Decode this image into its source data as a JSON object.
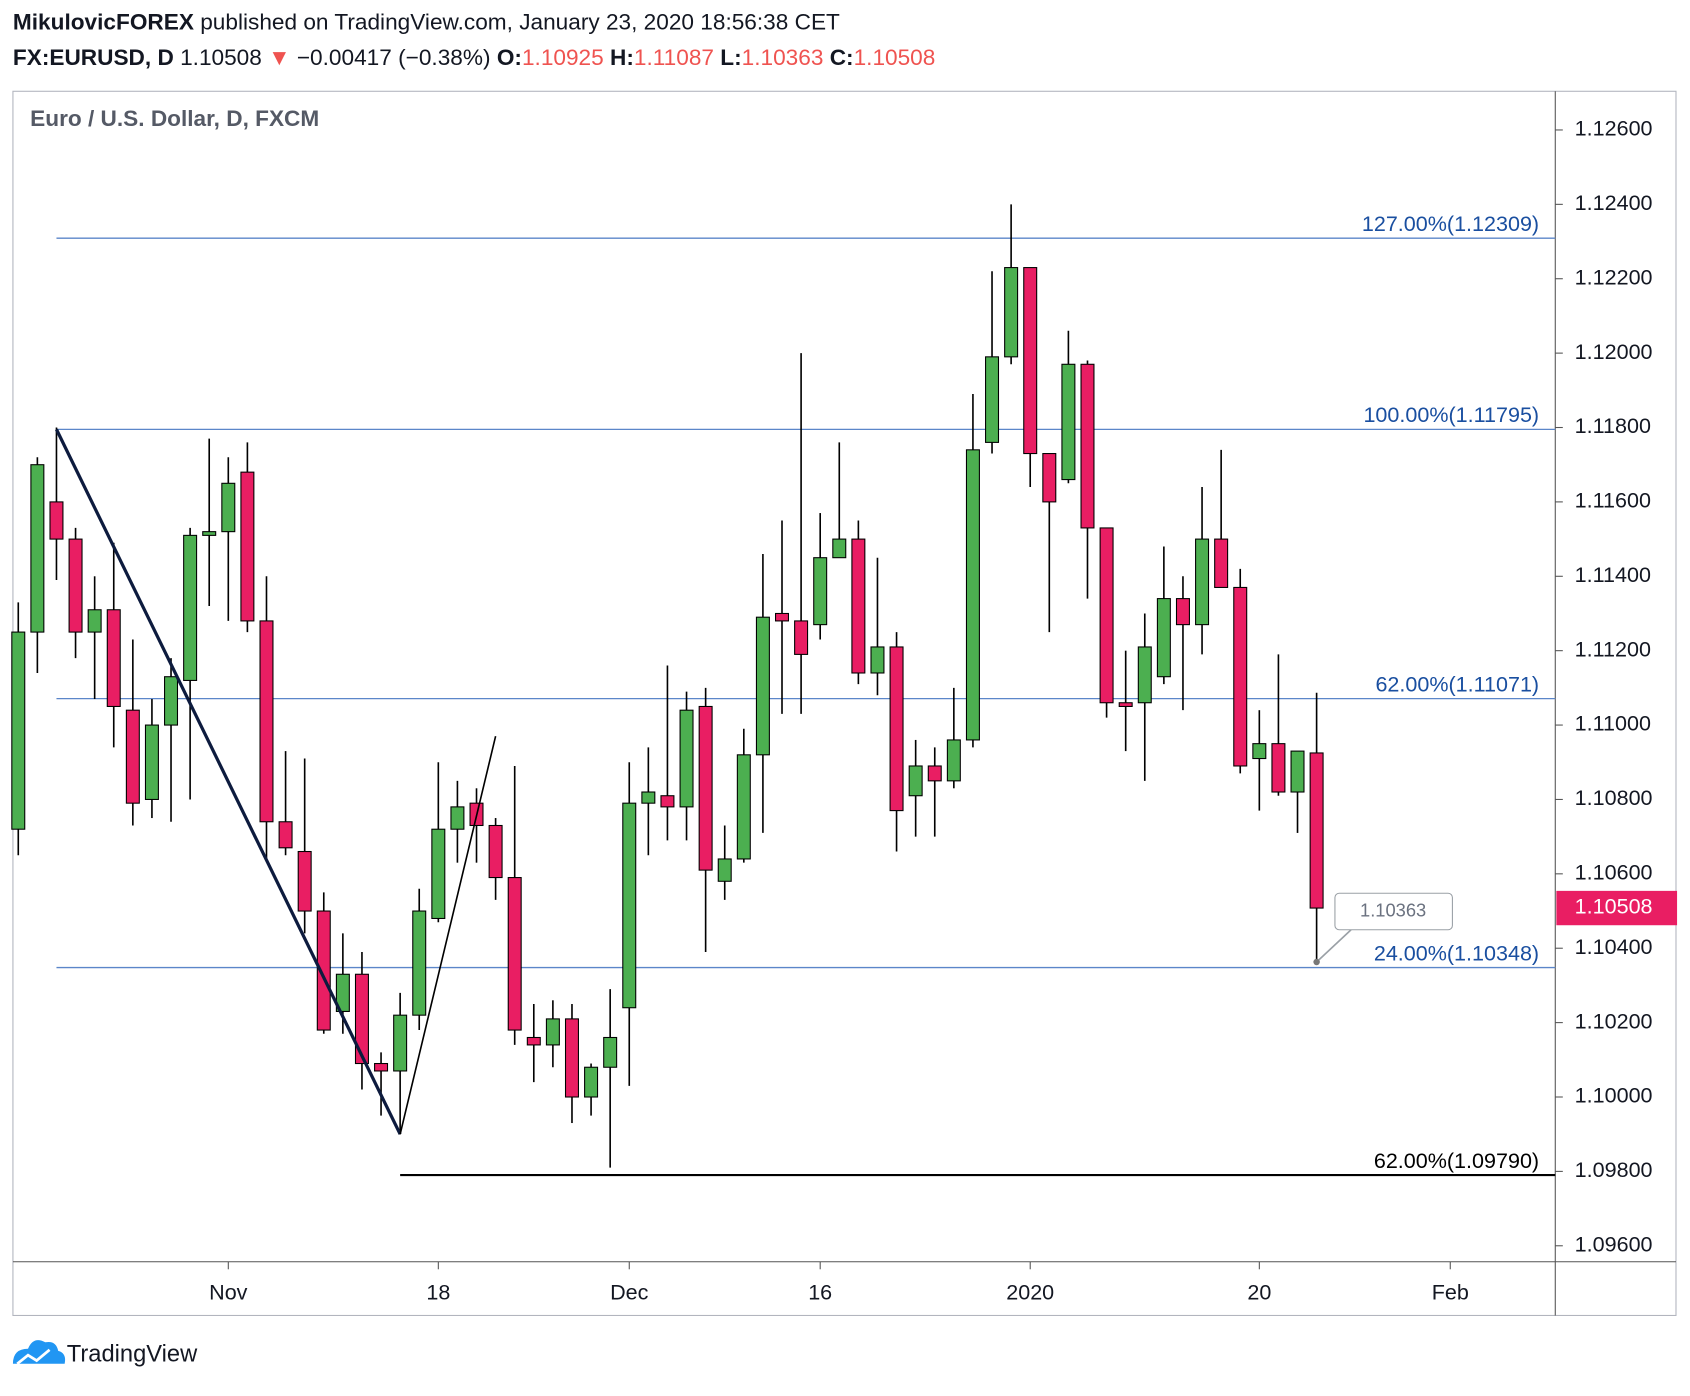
{
  "header": {
    "author": "MikulovicFOREX",
    "published": "published on TradingView.com, January 23, 2020 18:56:38 CET",
    "symbol": "FX:EURUSD, D",
    "arrow": "▼",
    "change": "−0.00417 (−0.38%)",
    "o": "O:",
    "h": "H:",
    "l": "L:",
    "c": "C:"
  },
  "footer": {
    "brand": "TradingView"
  },
  "chart_data": {
    "type": "candlestick",
    "title": "Euro / U.S. Dollar, D, FXCM",
    "up_color": "#4caf50",
    "down_color": "#e91e63",
    "level_color": "#1a4fa0",
    "open": [
      1.1072,
      1.1125,
      1.116,
      1.115,
      1.1125,
      1.1131,
      1.1104,
      1.108,
      1.11,
      1.1112,
      1.1151,
      1.1152,
      1.1168,
      1.1128,
      1.1074,
      1.1066,
      1.105,
      1.1023,
      1.1033,
      1.1009,
      1.1007,
      1.1022,
      1.1048,
      1.1072,
      1.1079,
      1.1073,
      1.1059,
      1.1016,
      1.1014,
      1.1021,
      1.1,
      1.1008,
      1.1024,
      1.1079,
      1.1081,
      1.1078,
      1.1105,
      1.1058,
      1.1064,
      1.1092,
      1.113,
      1.1128,
      1.1127,
      1.1145,
      1.115,
      1.1114,
      1.1121,
      1.1081,
      1.1089,
      1.1085,
      1.1096,
      1.1176,
      1.1199,
      1.1223,
      1.1173,
      1.1166,
      1.1197,
      1.1153,
      1.1106,
      1.1106,
      1.1113,
      1.1134,
      1.1127,
      1.115,
      1.1137,
      1.1091,
      1.1095,
      1.1082,
      1.10925
    ],
    "high": [
      1.1133,
      1.1172,
      1.118,
      1.1153,
      1.114,
      1.1149,
      1.1123,
      1.1107,
      1.1118,
      1.1153,
      1.1177,
      1.1172,
      1.1176,
      1.114,
      1.1093,
      1.1091,
      1.1055,
      1.1044,
      1.1039,
      1.1012,
      1.1028,
      1.1056,
      1.109,
      1.1085,
      1.1083,
      1.1075,
      1.1089,
      1.1025,
      1.1026,
      1.1025,
      1.1009,
      1.1029,
      1.109,
      1.1094,
      1.1116,
      1.1109,
      1.111,
      1.1073,
      1.1099,
      1.1146,
      1.1155,
      1.12,
      1.1157,
      1.1176,
      1.1155,
      1.1145,
      1.1125,
      1.1096,
      1.1094,
      1.111,
      1.1189,
      1.1222,
      1.124,
      1.1223,
      1.1173,
      1.1206,
      1.1198,
      1.1153,
      1.112,
      1.113,
      1.1148,
      1.114,
      1.1164,
      1.1174,
      1.1142,
      1.1104,
      1.1119,
      1.1093,
      1.11087
    ],
    "low": [
      1.1065,
      1.1114,
      1.1139,
      1.1118,
      1.1107,
      1.1094,
      1.1073,
      1.1075,
      1.1074,
      1.108,
      1.1132,
      1.1128,
      1.1125,
      1.1064,
      1.1065,
      1.1044,
      1.1017,
      1.1017,
      1.1002,
      1.0995,
      1.099,
      1.1018,
      1.1047,
      1.1063,
      1.1063,
      1.1053,
      1.1014,
      1.1004,
      1.1008,
      1.0993,
      1.0995,
      1.0981,
      1.1003,
      1.1065,
      1.1069,
      1.1069,
      1.1039,
      1.1053,
      1.1063,
      1.1071,
      1.1103,
      1.1103,
      1.1123,
      1.1145,
      1.1111,
      1.1108,
      1.1066,
      1.107,
      1.107,
      1.1083,
      1.1094,
      1.1173,
      1.1197,
      1.1164,
      1.1125,
      1.1165,
      1.1134,
      1.1102,
      1.1093,
      1.1085,
      1.1111,
      1.1104,
      1.1119,
      1.1137,
      1.1087,
      1.1077,
      1.1081,
      1.1071,
      1.10363
    ],
    "close": [
      1.1125,
      1.117,
      1.115,
      1.1125,
      1.1131,
      1.1105,
      1.1079,
      1.11,
      1.1113,
      1.1151,
      1.1152,
      1.1165,
      1.1128,
      1.1074,
      1.1067,
      1.105,
      1.1018,
      1.1033,
      1.1009,
      1.1007,
      1.1022,
      1.105,
      1.1072,
      1.1078,
      1.1073,
      1.1059,
      1.1018,
      1.1014,
      1.1021,
      1.1,
      1.1008,
      1.1016,
      1.1079,
      1.1082,
      1.1078,
      1.1104,
      1.1061,
      1.1064,
      1.1092,
      1.1129,
      1.1128,
      1.1119,
      1.1145,
      1.115,
      1.1114,
      1.1121,
      1.1077,
      1.1089,
      1.1085,
      1.1096,
      1.1174,
      1.1199,
      1.1223,
      1.1173,
      1.116,
      1.1197,
      1.1153,
      1.1106,
      1.1105,
      1.1121,
      1.1134,
      1.1127,
      1.115,
      1.1137,
      1.1089,
      1.1095,
      1.1082,
      1.1093,
      1.10508
    ],
    "xlim": [
      -0.28,
      80.5
    ],
    "xticks": [
      {
        "value": 11,
        "label": "Nov"
      },
      {
        "value": 22,
        "label": "18"
      },
      {
        "value": 32,
        "label": "Dec"
      },
      {
        "value": 42,
        "label": "16"
      },
      {
        "value": 53,
        "label": "2020"
      },
      {
        "value": 65,
        "label": "20"
      },
      {
        "value": 75,
        "label": "Feb"
      }
    ],
    "ylim": [
      1.09557,
      1.12704
    ],
    "yticks": [
      {
        "value": 1.126,
        "label": "1.12600"
      },
      {
        "value": 1.124,
        "label": "1.12400"
      },
      {
        "value": 1.122,
        "label": "1.12200"
      },
      {
        "value": 1.12,
        "label": "1.12000"
      },
      {
        "value": 1.118,
        "label": "1.11800"
      },
      {
        "value": 1.116,
        "label": "1.11600"
      },
      {
        "value": 1.114,
        "label": "1.11400"
      },
      {
        "value": 1.112,
        "label": "1.11200"
      },
      {
        "value": 1.11,
        "label": "1.11000"
      },
      {
        "value": 1.108,
        "label": "1.10800"
      },
      {
        "value": 1.106,
        "label": "1.10600"
      },
      {
        "value": 1.104,
        "label": "1.10400"
      },
      {
        "value": 1.102,
        "label": "1.10200"
      },
      {
        "value": 1.1,
        "label": "1.10000"
      },
      {
        "value": 1.098,
        "label": "1.09800"
      },
      {
        "value": 1.096,
        "label": "1.09600"
      }
    ],
    "fib_levels": [
      {
        "value": 1.12309,
        "label": "127.00%(1.12309)",
        "start": 2,
        "color": "#1a4fa0"
      },
      {
        "value": 1.11795,
        "label": "100.00%(1.11795)",
        "start": 2,
        "color": "#1a4fa0"
      },
      {
        "value": 1.11071,
        "label": "62.00%(1.11071)",
        "start": 2,
        "color": "#1a4fa0"
      },
      {
        "value": 1.10348,
        "label": "24.00%(1.10348)",
        "start": 2,
        "color": "#1a4fa0"
      },
      {
        "value": 1.0979,
        "label": "62.00%(1.09790)",
        "start": 20,
        "color": "#000000"
      }
    ],
    "trend_lines": [
      {
        "x": [
          2,
          20
        ],
        "y": [
          1.11795,
          1.099
        ],
        "width": 3,
        "color": "#0d1b3e"
      },
      {
        "x": [
          20,
          25
        ],
        "y": [
          1.099,
          1.1097
        ],
        "width": 1.5,
        "color": "#000000"
      }
    ]
  }
}
